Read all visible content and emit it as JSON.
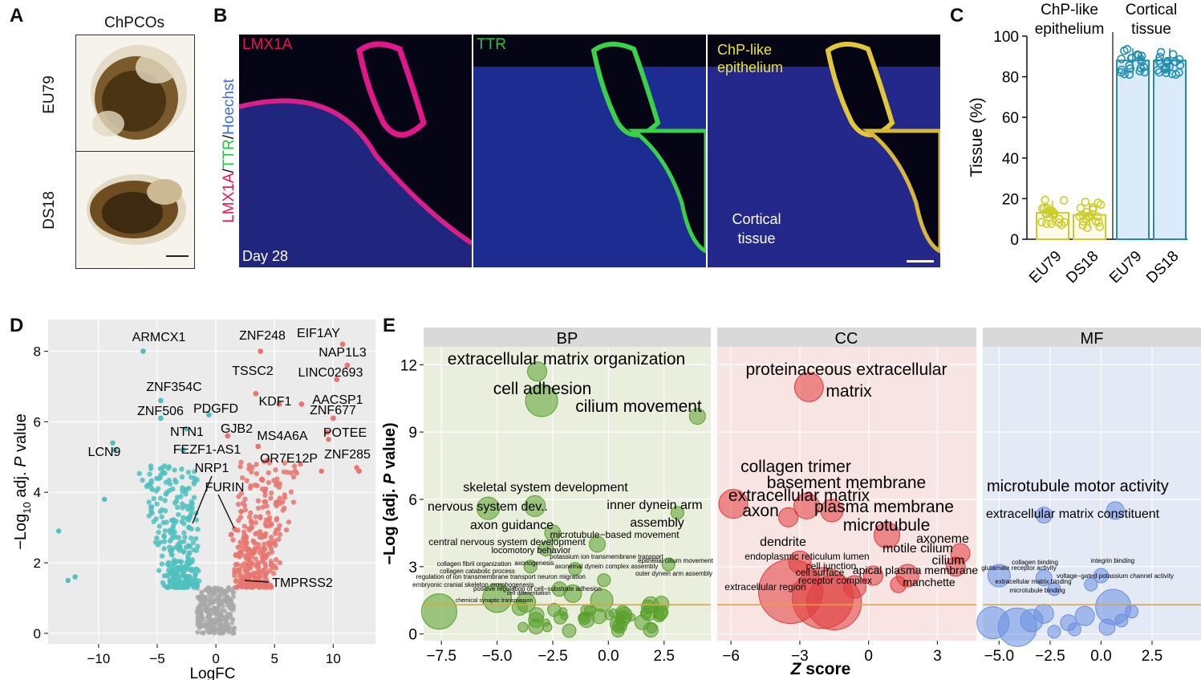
{
  "panels": {
    "A": {
      "label": "A",
      "title": "ChPCOs",
      "rows": [
        "EU79",
        "DS18"
      ]
    },
    "B": {
      "label": "B",
      "channel1": "LMX1A",
      "channel2": "TTR",
      "side_label": {
        "lmx": "LMX1A",
        "sep1": "/",
        "ttr": "TTR",
        "sep2": "/",
        "hoechst": "Hoechst"
      },
      "day": "Day 28",
      "merge_label_1": "ChP-like",
      "merge_label_2": "epithelium",
      "cortical_1": "Cortical",
      "cortical_2": "tissue",
      "colors": {
        "lmx": "#e8174a",
        "ttr": "#2fbf4a",
        "hoechst": "#3a6fe0",
        "yellow": "#e8e23a"
      }
    },
    "C": {
      "label": "C",
      "group_titles": [
        [
          "ChP-like",
          "epithelium"
        ],
        [
          "Cortical",
          "tissue"
        ]
      ],
      "ylabel": "Tissue (%)",
      "yticks": [
        "0",
        "20",
        "40",
        "60",
        "80",
        "100"
      ],
      "xlabels": [
        "EU79",
        "DS18",
        "EU79",
        "DS18"
      ],
      "chart_data": {
        "type": "bar",
        "categories": [
          "EU79",
          "DS18",
          "EU79",
          "DS18"
        ],
        "groups": [
          "ChP-like epithelium",
          "ChP-like epithelium",
          "Cortical tissue",
          "Cortical tissue"
        ],
        "values": [
          13,
          12,
          88,
          88
        ],
        "ylim": [
          0,
          100
        ],
        "colors": [
          "#cccc2a",
          "#cccc2a",
          "#1f8fb0",
          "#1f8fb0"
        ]
      }
    },
    "D": {
      "label": "D",
      "xlabel": "LogFC",
      "ylabel": "−Log10 adj. P value",
      "ylabel_parts": {
        "minus": "−Log",
        "sub": "10",
        "rest": " adj. ",
        "p": "P",
        "end": " value"
      },
      "xticks": [
        "−10",
        "−5",
        "0",
        "5",
        "10"
      ],
      "yticks": [
        "0",
        "2",
        "4",
        "6",
        "8"
      ],
      "genes": [
        {
          "name": "ARMCX1",
          "x": -6.2,
          "y": 8.0
        },
        {
          "name": "ZNF248",
          "x": 3.8,
          "y": 8.0
        },
        {
          "name": "EIF1AY",
          "x": 10.8,
          "y": 8.2
        },
        {
          "name": "NAP1L3",
          "x": 11.2,
          "y": 7.6
        },
        {
          "name": "TSSC2",
          "x": 3.4,
          "y": 6.8
        },
        {
          "name": "LINC02693",
          "x": 10.3,
          "y": 7.2
        },
        {
          "name": "ZNF354C",
          "x": -4.7,
          "y": 6.6
        },
        {
          "name": "KDF1",
          "x": 5.4,
          "y": 6.5
        },
        {
          "name": "AACSP1",
          "x": 7.3,
          "y": 6.5
        },
        {
          "name": "PDGFD",
          "x": -0.6,
          "y": 6.2
        },
        {
          "name": "ZNF506",
          "x": -4.7,
          "y": 6.1
        },
        {
          "name": "ZNF677",
          "x": 10.0,
          "y": 6.1
        },
        {
          "name": "NTN1",
          "x": -2.5,
          "y": 5.8
        },
        {
          "name": "GJB2",
          "x": 1.0,
          "y": 5.6
        },
        {
          "name": "MS4A6A",
          "x": 3.6,
          "y": 5.3
        },
        {
          "name": "POTEE",
          "x": 9.5,
          "y": 5.7
        },
        {
          "name": "FEZF1-AS1",
          "x": -2.8,
          "y": 5.2
        },
        {
          "name": "LCN9",
          "x": -8.6,
          "y": 5.2
        },
        {
          "name": "OR7E12P",
          "x": 4.4,
          "y": 4.9
        },
        {
          "name": "ZNF285",
          "x": 12.2,
          "y": 4.6
        },
        {
          "name": "NRP1",
          "x": -2.3,
          "y": 3.0
        },
        {
          "name": "FURIN",
          "x": 1.3,
          "y": 2.8
        },
        {
          "name": "TMPRSS2",
          "x": 2.3,
          "y": 1.5
        }
      ],
      "colors": {
        "down": "#4fbfbf",
        "up": "#e8766f",
        "ns": "#a8a8a8",
        "panel": "#ebebeb"
      }
    },
    "E": {
      "label": "E",
      "facets": [
        "BP",
        "CC",
        "MF"
      ],
      "xlabel_z": "Z",
      "xlabel_rest": " score",
      "ylabel": "−Log (adj. P value)",
      "ylabel_parts": {
        "pre": "−Log (adj. ",
        "p": "P",
        "post": " value)"
      },
      "yticks": [
        "0",
        "3",
        "6",
        "9",
        "12"
      ],
      "xticks_bp": [
        "−7.5",
        "−5.0",
        "−2.5",
        "0.0",
        "2.5"
      ],
      "xticks_cc": [
        "−6",
        "−3",
        "0",
        "3"
      ],
      "xticks_mf": [
        "−5.0",
        "−2.5",
        "0.0",
        "2.5"
      ],
      "terms_bp": [
        "extracellular matrix organization",
        "cell adhesion",
        "cilium movement",
        "skeletal system development",
        "nervous system dev..",
        "inner dynein arm",
        "axon guidance",
        "assembly",
        "microtubule−based movement",
        "central nervous system development",
        "locomotory behavior",
        "potassium ion transmembrane transport",
        "epithelial cilium movement",
        "collagen fibril organization",
        "axonogenesis",
        "axonemal dynein complex assembly",
        "collagen catabolic process",
        "outer dynein arm assembly",
        "regulation of ion transmembrane transport",
        "neuron migration",
        "embryonic cranial skeleton morphogenesis",
        "positive regulation of cell−substrate adhesion",
        "cell differentiation",
        "chemical synaptic transmission"
      ],
      "terms_cc": [
        "proteinaceous extracellular",
        "matrix",
        "collagen trimer",
        "basement membrane",
        "extracellular matrix",
        "axon",
        "plasma membrane",
        "microtubule",
        "dendrite",
        "axoneme",
        "motile cilium",
        "endoplasmic reticulum lumen",
        "cilium",
        "cell junction",
        "cell surface",
        "apical plasma membrane",
        "receptor complex",
        "manchette",
        "extracellular region"
      ],
      "terms_mf": [
        "microtubule motor activity",
        "extracellular matrix constituent",
        "collagen binding",
        "integrin binding",
        "glutamate receptor activity",
        "voltage−gated potassium channel activity",
        "extracellular matrix binding",
        "microtubule binding"
      ],
      "colors": {
        "bp": "#5aa02c",
        "cc": "#e03c3c",
        "mf": "#6a8fe0",
        "threshold": "#e8a030"
      }
    }
  }
}
